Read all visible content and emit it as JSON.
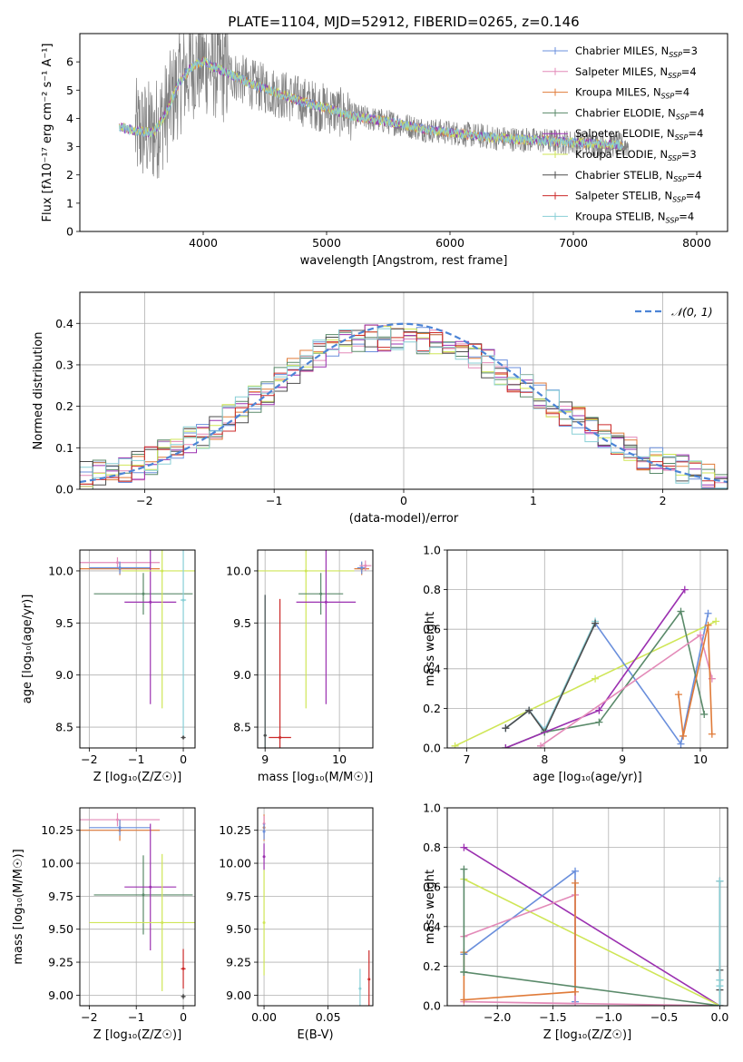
{
  "figure_title": "PLATE=1104, MJD=52912, FIBERID=0265, z=0.146",
  "colors": {
    "Chabrier MILES": "#6a8fdc",
    "Salpeter MILES": "#e38ab8",
    "Kroupa MILES": "#e07b39",
    "Chabrier ELODIE": "#5a8a6a",
    "Salpeter ELODIE": "#9b30b0",
    "Kroupa ELODIE": "#cfe657",
    "Chabrier STELIB": "#4d4d4d",
    "Salpeter STELIB": "#cc2a2a",
    "Kroupa STELIB": "#88cfd6",
    "data": "#808080",
    "normal": "#4c84d6"
  },
  "chart_data": [
    {
      "id": "spectrum",
      "type": "line",
      "title": "PLATE=1104, MJD=52912, FIBERID=0265, z=0.146",
      "xlabel": "wavelength [Angstrom, rest frame]",
      "ylabel": "Flux [fλ10⁻¹⁷ erg cm⁻² s⁻¹ A⁻¹]",
      "xlim": [
        3000,
        8250
      ],
      "ylim": [
        0,
        7
      ],
      "xticks": [
        "4000",
        "5000",
        "6000",
        "7000",
        "8000"
      ],
      "yticks": [
        "0",
        "1",
        "2",
        "3",
        "4",
        "5",
        "6"
      ],
      "legend_position": "top-right",
      "legend": [
        {
          "name": "Chabrier MILES, N",
          "sub": "SSP",
          "val": "=3"
        },
        {
          "name": "Salpeter MILES, N",
          "sub": "SSP",
          "val": "=4"
        },
        {
          "name": "Kroupa MILES, N",
          "sub": "SSP",
          "val": "=4"
        },
        {
          "name": "Chabrier ELODIE, N",
          "sub": "SSP",
          "val": "=4"
        },
        {
          "name": "Salpeter ELODIE, N",
          "sub": "SSP",
          "val": "=4"
        },
        {
          "name": "Kroupa ELODIE, N",
          "sub": "SSP",
          "val": "=3"
        },
        {
          "name": "Chabrier STELIB, N",
          "sub": "SSP",
          "val": "=4"
        },
        {
          "name": "Salpeter STELIB, N",
          "sub": "SSP",
          "val": "=4"
        },
        {
          "name": "Kroupa STELIB, N",
          "sub": "SSP",
          "val": "=4"
        }
      ],
      "model_continuum": {
        "x": [
          3320,
          3450,
          3600,
          3700,
          3800,
          3900,
          4000,
          4200,
          4400,
          4600,
          4800,
          5000,
          5200,
          5400,
          5600,
          5800,
          6000,
          6200,
          6400,
          6600,
          6800,
          7000,
          7200,
          7400
        ],
        "y": [
          3.7,
          3.55,
          3.5,
          4.2,
          5.2,
          5.8,
          6.0,
          5.6,
          5.2,
          4.9,
          4.6,
          4.35,
          4.1,
          3.95,
          3.8,
          3.6,
          3.5,
          3.4,
          3.3,
          3.25,
          3.2,
          3.15,
          3.1,
          3.05
        ]
      },
      "data_range": [
        3450,
        7450
      ]
    },
    {
      "id": "residuals",
      "type": "line",
      "xlabel": "(data-model)/error",
      "ylabel": "Normed distribution",
      "xlim": [
        -2.5,
        2.5
      ],
      "ylim": [
        0,
        0.475
      ],
      "xticks": [
        "−2",
        "−1",
        "0",
        "1",
        "2"
      ],
      "yticks": [
        "0.0",
        "0.1",
        "0.2",
        "0.3",
        "0.4"
      ],
      "legend_position": "top-right",
      "legend_label": "𝒩(0, 1)",
      "bin_width": 0.1,
      "histogram_envelope_x": [
        -2.5,
        -2.0,
        -1.5,
        -1.0,
        -0.5,
        0.0,
        0.5,
        1.0,
        1.5,
        2.0,
        2.5
      ],
      "histogram_envelope_y": [
        0.03,
        0.06,
        0.14,
        0.25,
        0.36,
        0.37,
        0.33,
        0.24,
        0.13,
        0.06,
        0.02
      ]
    },
    {
      "id": "age-vs-Z",
      "type": "scatter",
      "xlabel": "Z [log₁₀(Z/Z☉)]",
      "ylabel": "age  [log₁₀(age/yr)]",
      "xlim": [
        -2.2,
        0.25
      ],
      "ylim": [
        8.3,
        10.2
      ],
      "xticks": [
        "−2",
        "−1",
        "0"
      ],
      "yticks": [
        "8.5",
        "9.0",
        "9.5",
        "10.0"
      ],
      "points": [
        {
          "series": "Salpeter MILES",
          "x": -1.4,
          "xerr": 0.9,
          "y": 10.08,
          "yerr": 0.05
        },
        {
          "series": "Kroupa MILES",
          "x": -1.35,
          "xerr": 0.85,
          "y": 10.02,
          "yerr": 0.06
        },
        {
          "series": "Chabrier MILES",
          "x": -1.35,
          "xerr": 0.65,
          "y": 10.03,
          "yerr": 0.06
        },
        {
          "series": "Chabrier ELODIE",
          "x": -0.85,
          "xerr": 1.05,
          "y": 9.78,
          "yerr": 0.2
        },
        {
          "series": "Salpeter ELODIE",
          "x": -0.7,
          "xerr": 0.55,
          "y": 9.7,
          "yerr": 0.98
        },
        {
          "series": "Kroupa ELODIE",
          "x": -0.45,
          "xerr": 0.85,
          "y": 10.0,
          "yerr": 1.32
        },
        {
          "series": "Kroupa STELIB",
          "x": 0.0,
          "xerr": 0.06,
          "y": 9.72,
          "yerr": 1.32
        },
        {
          "series": "Chabrier STELIB",
          "x": 0.0,
          "xerr": 0.05,
          "y": 8.4,
          "yerr": 0.02
        }
      ]
    },
    {
      "id": "age-vs-mass",
      "type": "scatter",
      "xlabel": "mass [log₁₀(M/M☉)]",
      "ylabel": "",
      "xlim": [
        8.9,
        10.45
      ],
      "ylim": [
        8.3,
        10.2
      ],
      "xticks": [
        "9",
        "10"
      ],
      "yticks": [
        "8.5",
        "9.0",
        "9.5",
        "10.0"
      ],
      "points": [
        {
          "series": "Kroupa STELIB",
          "x": 9.0,
          "xerr": 0.02,
          "y": 8.42,
          "yerr": 1.35
        },
        {
          "series": "Chabrier STELIB",
          "x": 9.0,
          "xerr": 0.02,
          "y": 8.42,
          "yerr": 1.35
        },
        {
          "series": "Salpeter STELIB",
          "x": 9.2,
          "xerr": 0.15,
          "y": 8.4,
          "yerr": 1.33
        },
        {
          "series": "Kroupa ELODIE",
          "x": 9.55,
          "xerr": 0.65,
          "y": 10.0,
          "yerr": 1.32
        },
        {
          "series": "Chabrier ELODIE",
          "x": 9.75,
          "xerr": 0.3,
          "y": 9.78,
          "yerr": 0.2
        },
        {
          "series": "Salpeter ELODIE",
          "x": 9.82,
          "xerr": 0.4,
          "y": 9.7,
          "yerr": 0.98
        },
        {
          "series": "Kroupa MILES",
          "x": 10.3,
          "xerr": 0.1,
          "y": 10.02,
          "yerr": 0.06
        },
        {
          "series": "Chabrier MILES",
          "x": 10.3,
          "xerr": 0.06,
          "y": 10.03,
          "yerr": 0.06
        },
        {
          "series": "Salpeter MILES",
          "x": 10.35,
          "xerr": 0.08,
          "y": 10.05,
          "yerr": 0.05
        }
      ]
    },
    {
      "id": "massweight-vs-age",
      "type": "line",
      "xlabel": "age  [log₁₀(age/yr)]",
      "ylabel": "mass weight",
      "xlim": [
        6.75,
        10.35
      ],
      "ylim": [
        0,
        1.0
      ],
      "xticks": [
        "7",
        "8",
        "9",
        "10"
      ],
      "yticks": [
        "0.0",
        "0.2",
        "0.4",
        "0.6",
        "0.8",
        "1.0"
      ],
      "grid": true,
      "series": [
        {
          "name": "Kroupa ELODIE",
          "x": [
            6.85,
            8.65,
            10.2
          ],
          "y": [
            0.01,
            0.35,
            0.64
          ]
        },
        {
          "name": "Chabrier MILES",
          "x": [
            7.5,
            7.8,
            8.0,
            8.65,
            9.75,
            10.1
          ],
          "y": [
            0.1,
            0.19,
            0.09,
            0.63,
            0.02,
            0.68
          ]
        },
        {
          "name": "Kroupa STELIB",
          "x": [
            7.5,
            7.8,
            8.0,
            8.65
          ],
          "y": [
            0.1,
            0.19,
            0.09,
            0.64
          ]
        },
        {
          "name": "Chabrier STELIB",
          "x": [
            7.5,
            7.8,
            8.0,
            8.65
          ],
          "y": [
            0.1,
            0.19,
            0.08,
            0.63
          ]
        },
        {
          "name": "Chabrier ELODIE",
          "x": [
            7.5,
            8.0,
            8.7,
            9.75,
            10.05
          ],
          "y": [
            0.0,
            0.08,
            0.13,
            0.69,
            0.17
          ]
        },
        {
          "name": "Salpeter ELODIE",
          "x": [
            7.5,
            8.7,
            9.8
          ],
          "y": [
            0.0,
            0.19,
            0.8
          ]
        },
        {
          "name": "Salpeter MILES",
          "x": [
            7.95,
            10.0,
            10.15
          ],
          "y": [
            0.01,
            0.57,
            0.35
          ]
        },
        {
          "name": "Kroupa MILES",
          "x": [
            9.72,
            9.78,
            10.1,
            10.15
          ],
          "y": [
            0.27,
            0.06,
            0.62,
            0.07
          ]
        }
      ]
    },
    {
      "id": "mass-vs-Z",
      "type": "scatter",
      "xlabel": "Z [log₁₀(Z/Z☉)]",
      "ylabel": "mass [log₁₀(M/M☉)]",
      "xlim": [
        -2.2,
        0.25
      ],
      "ylim": [
        8.92,
        10.42
      ],
      "xticks": [
        "−2",
        "−1",
        "0"
      ],
      "yticks": [
        "9.00",
        "9.25",
        "9.50",
        "9.75",
        "10.00",
        "10.25"
      ],
      "points": [
        {
          "series": "Salpeter MILES",
          "x": -1.4,
          "xerr": 0.9,
          "y": 10.33,
          "yerr": 0.05
        },
        {
          "series": "Kroupa MILES",
          "x": -1.35,
          "xerr": 0.85,
          "y": 10.25,
          "yerr": 0.08
        },
        {
          "series": "Chabrier MILES",
          "x": -1.35,
          "xerr": 0.65,
          "y": 10.27,
          "yerr": 0.06
        },
        {
          "series": "Chabrier ELODIE",
          "x": -0.85,
          "xerr": 1.05,
          "y": 9.76,
          "yerr": 0.3
        },
        {
          "series": "Salpeter ELODIE",
          "x": -0.7,
          "xerr": 0.55,
          "y": 9.82,
          "yerr": 0.48
        },
        {
          "series": "Kroupa ELODIE",
          "x": -0.45,
          "xerr": 1.55,
          "y": 9.55,
          "yerr": 0.52
        },
        {
          "series": "Salpeter STELIB",
          "x": 0.0,
          "xerr": 0.05,
          "y": 9.2,
          "yerr": 0.15
        },
        {
          "series": "Chabrier STELIB",
          "x": 0.0,
          "xerr": 0.05,
          "y": 8.99,
          "yerr": 0.02
        }
      ]
    },
    {
      "id": "mass-vs-ebv",
      "type": "scatter",
      "xlabel": "E(B-V)",
      "ylabel": "",
      "xlim": [
        -0.005,
        0.085
      ],
      "ylim": [
        8.92,
        10.42
      ],
      "xticks": [
        "0.00",
        "0.05"
      ],
      "yticks": [
        "9.00",
        "9.25",
        "9.50",
        "9.75",
        "10.00",
        "10.25"
      ],
      "points": [
        {
          "series": "Kroupa MILES",
          "x": 0.0,
          "y": 10.27,
          "yerr": 0.1
        },
        {
          "series": "Salpeter MILES",
          "x": 0.0,
          "y": 10.3,
          "yerr": 0.06
        },
        {
          "series": "Chabrier MILES",
          "x": 0.0,
          "y": 10.24,
          "yerr": 0.06
        },
        {
          "series": "Salpeter ELODIE",
          "x": 0.0,
          "y": 10.05,
          "yerr": 0.1
        },
        {
          "series": "Kroupa ELODIE",
          "x": 0.0,
          "y": 9.55,
          "yerr": 0.4
        },
        {
          "series": "Kroupa STELIB",
          "x": 0.075,
          "y": 9.05,
          "yerr": 0.15
        },
        {
          "series": "Salpeter STELIB",
          "x": 0.082,
          "y": 9.12,
          "yerr": 0.22
        }
      ]
    },
    {
      "id": "massweight-vs-Z",
      "type": "line",
      "xlabel": "Z [log₁₀(Z/Z☉)]",
      "ylabel": "mass weight",
      "xlim": [
        -2.45,
        0.07
      ],
      "ylim": [
        0,
        1.0
      ],
      "xticks": [
        "−2.0",
        "−1.5",
        "−1.0",
        "−0.5",
        "0.0"
      ],
      "yticks": [
        "0.0",
        "0.2",
        "0.4",
        "0.6",
        "0.8",
        "1.0"
      ],
      "grid": true,
      "series": [
        {
          "name": "Salpeter ELODIE",
          "x": [
            -2.3,
            0.0
          ],
          "y": [
            0.8,
            0.0
          ]
        },
        {
          "name": "Kroupa ELODIE",
          "x": [
            -2.3,
            0.0
          ],
          "y": [
            0.64,
            0.0
          ]
        },
        {
          "name": "Chabrier MILES",
          "x": [
            -2.3,
            -1.3,
            -1.3
          ],
          "y": [
            0.26,
            0.68,
            0.02
          ]
        },
        {
          "name": "Salpeter MILES",
          "x": [
            -2.3,
            -1.3,
            -1.3,
            -2.3,
            0.0
          ],
          "y": [
            0.35,
            0.56,
            0.01,
            0.02,
            0.0
          ]
        },
        {
          "name": "Kroupa MILES",
          "x": [
            -2.3,
            -2.3,
            -1.3,
            -1.3
          ],
          "y": [
            0.27,
            0.03,
            0.07,
            0.62
          ]
        },
        {
          "name": "Chabrier ELODIE",
          "x": [
            -2.3,
            -2.3,
            -2.3,
            0.0,
            0.0
          ],
          "y": [
            0.69,
            0.17,
            0.17,
            0.0,
            0.13
          ]
        },
        {
          "name": "Chabrier STELIB",
          "x": [
            0.0,
            0.0,
            0.0,
            0.0
          ],
          "y": [
            0.63,
            0.18,
            0.08,
            0.0
          ]
        },
        {
          "name": "Kroupa STELIB",
          "x": [
            0.0,
            0.0,
            0.0,
            0.0
          ],
          "y": [
            0.63,
            0.13,
            0.1,
            0.0
          ]
        }
      ]
    }
  ]
}
